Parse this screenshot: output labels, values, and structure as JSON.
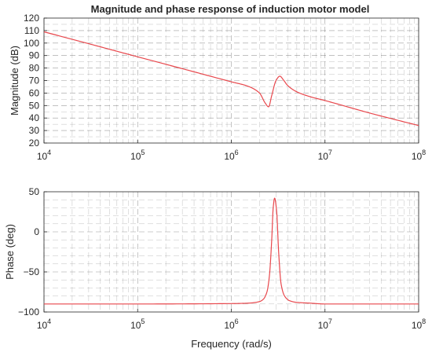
{
  "chart_data": [
    {
      "type": "line",
      "title": "Magnitude and phase response of induction motor model",
      "xlabel": "",
      "ylabel": "Magnitude (dB)",
      "xscale": "log",
      "xlim": [
        10000,
        100000000
      ],
      "ylim": [
        20,
        120
      ],
      "xticks": [
        10000,
        100000,
        1000000,
        10000000,
        100000000
      ],
      "xtick_base": "10",
      "xtick_exponents": [
        "4",
        "5",
        "6",
        "7",
        "8"
      ],
      "yticks": [
        20,
        30,
        40,
        50,
        60,
        70,
        80,
        90,
        100,
        110,
        120
      ],
      "grid": true,
      "color": "#e8474c",
      "series": [
        {
          "x": [
            10000,
            30000,
            100000,
            300000,
            1000000,
            1500000,
            2000000,
            2300000,
            2500000,
            2700000,
            3000000,
            3300000,
            3600000,
            4000000,
            5000000,
            7000000,
            10000000,
            30000000,
            100000000
          ],
          "values": [
            109,
            99.5,
            89,
            79.5,
            69,
            65.5,
            60,
            52,
            49,
            58,
            70,
            73.5,
            70.5,
            66,
            61,
            57,
            54,
            44,
            34
          ]
        }
      ]
    },
    {
      "type": "line",
      "title": "",
      "xlabel": "Frequency (rad/s)",
      "ylabel": "Phase (deg)",
      "xscale": "log",
      "xlim": [
        10000,
        100000000
      ],
      "ylim": [
        -100,
        50
      ],
      "xticks": [
        10000,
        100000,
        1000000,
        10000000,
        100000000
      ],
      "xtick_base": "10",
      "xtick_exponents": [
        "4",
        "5",
        "6",
        "7",
        "8"
      ],
      "yticks": [
        -100,
        -50,
        0,
        50
      ],
      "ytick_labels": [
        "−100",
        "−50",
        "0",
        "50"
      ],
      "grid": true,
      "color": "#e8474c",
      "series": [
        {
          "x": [
            10000,
            100000,
            1000000,
            1500000,
            2000000,
            2200000,
            2400000,
            2550000,
            2700000,
            2800000,
            2900000,
            3050000,
            3200000,
            3400000,
            3700000,
            4200000,
            5000000,
            7000000,
            10000000,
            100000000
          ],
          "values": [
            -90,
            -90,
            -89.5,
            -89,
            -87,
            -84,
            -75,
            -55,
            -10,
            30,
            42,
            25,
            -25,
            -65,
            -80,
            -86,
            -88,
            -89,
            -90,
            -90
          ]
        }
      ]
    }
  ]
}
